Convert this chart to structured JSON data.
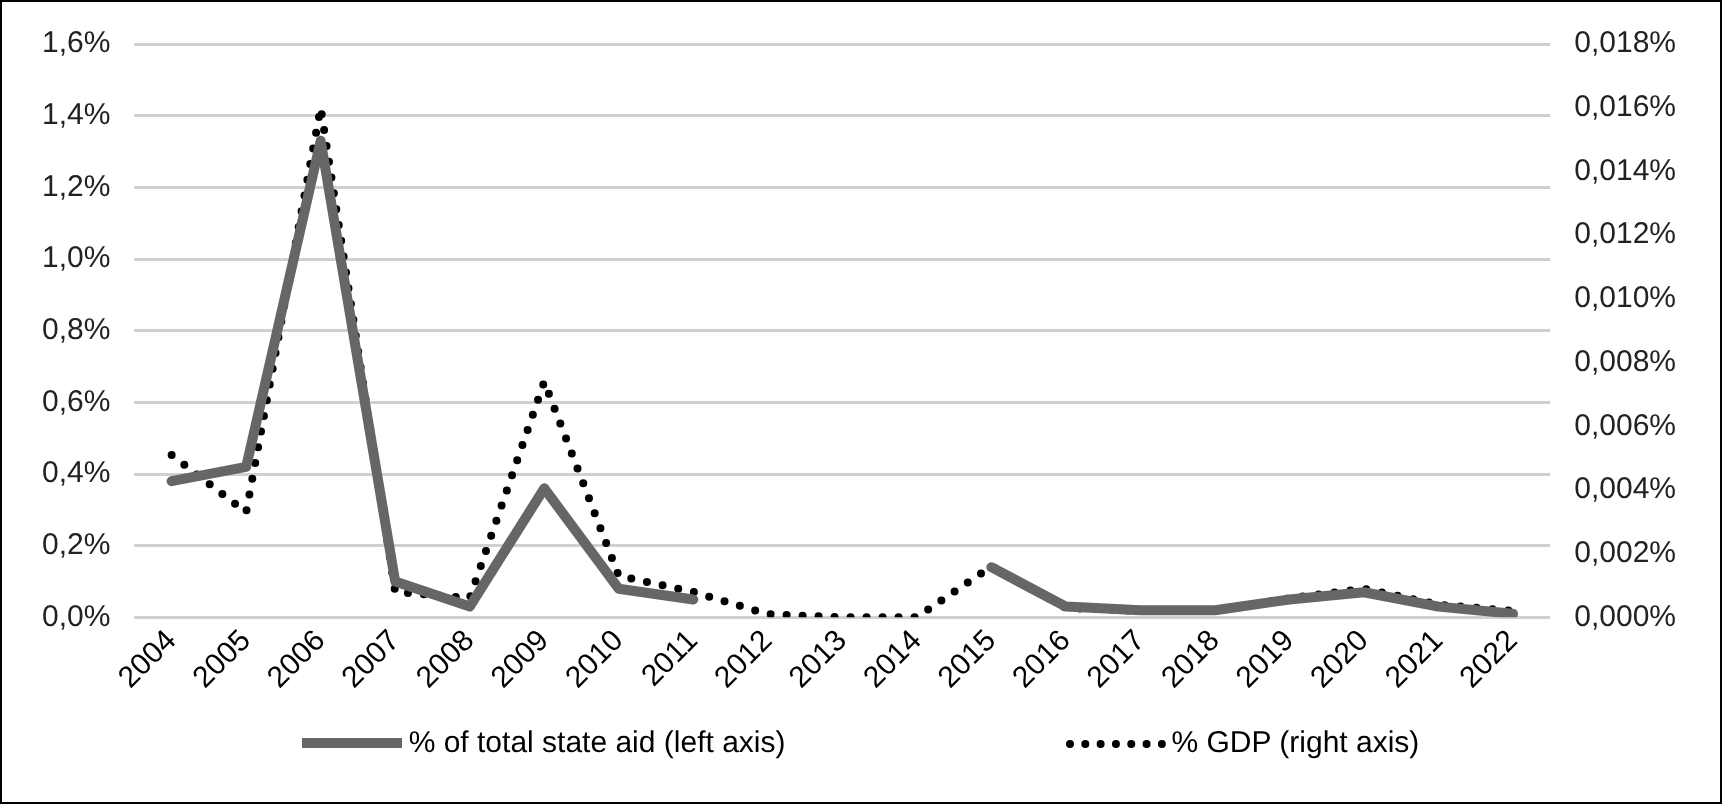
{
  "chart_data": {
    "type": "line",
    "categories": [
      "2004",
      "2005",
      "2006",
      "2007",
      "2008",
      "2009",
      "2010",
      "2011",
      "2012",
      "2013",
      "2014",
      "2015",
      "2016",
      "2017",
      "2018",
      "2019",
      "2020",
      "2021",
      "2022"
    ],
    "series": [
      {
        "name": "% of total state aid (left axis)",
        "color": "#666666",
        "line_style": "solid",
        "values": [
          0.38,
          0.42,
          1.33,
          0.1,
          0.03,
          0.36,
          0.08,
          0.05,
          null,
          null,
          null,
          0.14,
          0.03,
          0.02,
          0.02,
          0.05,
          0.07,
          0.03,
          0.01
        ]
      },
      {
        "name": "% GDP (right axis)",
        "color": "#000000",
        "line_style": "dotted",
        "axis": "y2",
        "values": [
          0.0051,
          0.0033,
          0.016,
          0.0008,
          0.0006,
          0.0074,
          0.0013,
          0.0008,
          0.0001,
          0,
          0,
          0.0016,
          0.0003,
          0.0002,
          0.0002,
          0.0006,
          0.0009,
          0.0004,
          0.0002
        ]
      }
    ],
    "ylim": [
      0,
      1.6
    ],
    "yticks": [
      {
        "value": 0,
        "label": "0,0%"
      },
      {
        "value": 0.2,
        "label": "0,2%"
      },
      {
        "value": 0.4,
        "label": "0,4%"
      },
      {
        "value": 0.6,
        "label": "0,6%"
      },
      {
        "value": 0.8,
        "label": "0,8%"
      },
      {
        "value": 1.0,
        "label": "1,0%"
      },
      {
        "value": 1.2,
        "label": "1,2%"
      },
      {
        "value": 1.4,
        "label": "1,4%"
      },
      {
        "value": 1.6,
        "label": "1,6%"
      }
    ],
    "y2lim": [
      0,
      0.018
    ],
    "y2ticks": [
      {
        "value": 0,
        "label": "0,000%"
      },
      {
        "value": 0.002,
        "label": "0,002%"
      },
      {
        "value": 0.004,
        "label": "0,004%"
      },
      {
        "value": 0.006,
        "label": "0,006%"
      },
      {
        "value": 0.008,
        "label": "0,008%"
      },
      {
        "value": 0.01,
        "label": "0,010%"
      },
      {
        "value": 0.012,
        "label": "0,012%"
      },
      {
        "value": 0.014,
        "label": "0,014%"
      },
      {
        "value": 0.016,
        "label": "0,016%"
      },
      {
        "value": 0.018,
        "label": "0,018%"
      }
    ],
    "grid": "y",
    "legend": "bottom",
    "marker": "none"
  }
}
